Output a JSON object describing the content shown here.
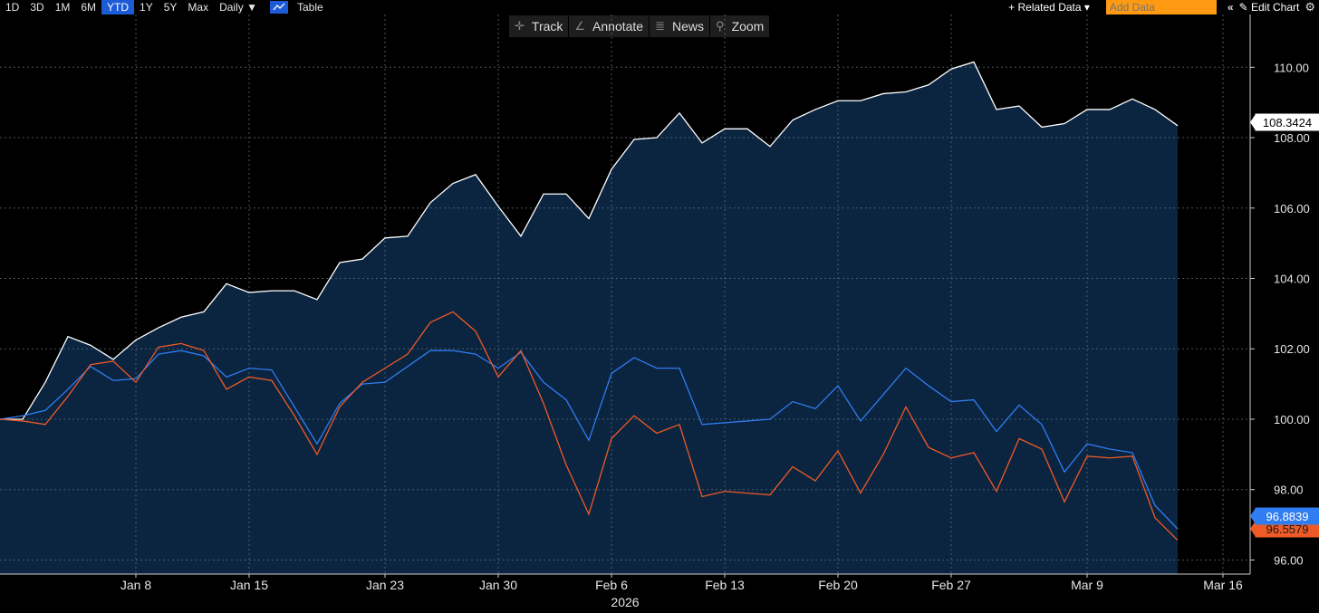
{
  "toolbar": {
    "timeframes": [
      "1D",
      "3D",
      "1M",
      "6M",
      "YTD",
      "1Y",
      "5Y",
      "Max"
    ],
    "active_timeframe": "YTD",
    "interval": "Daily ▼",
    "table_label": "Table",
    "related_data": "+ Related Data ▾",
    "add_data_placeholder": "Add Data",
    "collapse": "«",
    "edit_chart": "✎ Edit Chart",
    "gear": "⚙"
  },
  "subbar": {
    "track": "Track",
    "annotate": "Annotate",
    "news": "News",
    "zoom": "Zoom"
  },
  "chart_data": {
    "type": "line",
    "ylim": [
      95.6,
      111.5
    ],
    "yticks": [
      "96.00",
      "98.00",
      "100.00",
      "102.00",
      "104.00",
      "106.00",
      "108.00",
      "110.00"
    ],
    "xticks": [
      {
        "label": "Jan 8",
        "i": 6
      },
      {
        "label": "Jan 15",
        "i": 11
      },
      {
        "label": "Jan 23",
        "i": 17
      },
      {
        "label": "Jan 30",
        "i": 22
      },
      {
        "label": "Feb 6",
        "i": 27
      },
      {
        "label": "Feb 13",
        "i": 32
      },
      {
        "label": "Feb 20",
        "i": 37
      },
      {
        "label": "Feb 27",
        "i": 42
      },
      {
        "label": "Mar 9",
        "i": 48
      },
      {
        "label": "Mar 16",
        "i": 54
      }
    ],
    "year_label": "2026",
    "series": [
      {
        "name": "",
        "color": "#ffffff",
        "fill": "#0b2440",
        "last_label": "108.3424",
        "values": [
          100.0,
          100.0,
          101.05,
          102.35,
          102.1,
          101.7,
          102.25,
          102.6,
          102.9,
          103.05,
          103.85,
          103.6,
          103.65,
          103.65,
          103.4,
          104.45,
          104.55,
          105.15,
          105.2,
          106.15,
          106.7,
          106.95,
          106.05,
          105.2,
          106.4,
          106.4,
          105.7,
          107.1,
          107.95,
          108.0,
          108.7,
          107.85,
          108.25,
          108.25,
          107.75,
          108.5,
          108.8,
          109.05,
          109.05,
          109.25,
          109.3,
          109.5,
          109.95,
          110.15,
          108.8,
          108.9,
          108.3,
          108.4,
          108.8,
          108.8,
          109.1,
          108.8,
          108.34
        ]
      },
      {
        "name": "",
        "color": "#2f7df0",
        "last_label": "96.8839",
        "values": [
          100.0,
          100.1,
          100.25,
          100.85,
          101.5,
          101.1,
          101.15,
          101.85,
          101.95,
          101.8,
          101.2,
          101.45,
          101.4,
          100.35,
          99.3,
          100.45,
          101.0,
          101.05,
          101.5,
          101.95,
          101.95,
          101.85,
          101.45,
          101.9,
          101.05,
          100.55,
          99.4,
          101.3,
          101.75,
          101.45,
          101.45,
          99.85,
          99.9,
          99.95,
          100.0,
          100.5,
          100.3,
          100.95,
          99.95,
          100.7,
          101.45,
          100.95,
          100.5,
          100.55,
          99.65,
          100.4,
          99.85,
          98.5,
          99.3,
          99.15,
          99.05,
          97.55,
          96.88
        ]
      },
      {
        "name": "",
        "color": "#ef5a26",
        "last_label": "96.5579",
        "values": [
          100.0,
          99.95,
          99.85,
          100.65,
          101.55,
          101.65,
          101.05,
          102.05,
          102.15,
          101.95,
          100.85,
          101.2,
          101.1,
          100.1,
          99.0,
          100.35,
          101.05,
          101.45,
          101.85,
          102.75,
          103.05,
          102.5,
          101.2,
          101.95,
          100.45,
          98.7,
          97.3,
          99.45,
          100.1,
          99.6,
          99.85,
          97.8,
          97.95,
          97.9,
          97.85,
          98.65,
          98.25,
          99.1,
          97.9,
          99.0,
          100.35,
          99.2,
          98.9,
          99.05,
          97.95,
          99.45,
          99.15,
          97.65,
          98.95,
          98.9,
          98.95,
          97.2,
          96.56
        ]
      }
    ]
  }
}
